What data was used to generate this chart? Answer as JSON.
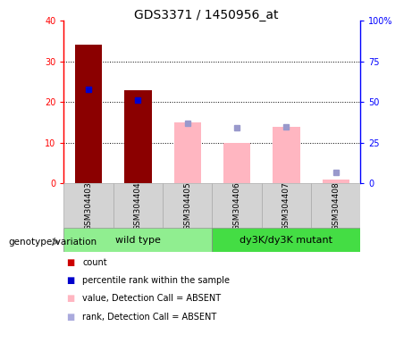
{
  "title": "GDS3371 / 1450956_at",
  "samples": [
    "GSM304403",
    "GSM304404",
    "GSM304405",
    "GSM304406",
    "GSM304407",
    "GSM304408"
  ],
  "count_values": [
    34,
    23,
    null,
    null,
    null,
    null
  ],
  "rank_values_pct": [
    58,
    51,
    null,
    null,
    null,
    null
  ],
  "count_absent": [
    null,
    null,
    15,
    10,
    14,
    1
  ],
  "rank_absent_pct": [
    null,
    null,
    37,
    34,
    35,
    7
  ],
  "ylim_left": [
    0,
    40
  ],
  "ylim_right": [
    0,
    100
  ],
  "yticks_left": [
    0,
    10,
    20,
    30,
    40
  ],
  "yticks_right": [
    0,
    25,
    50,
    75,
    100
  ],
  "yticklabels_left": [
    "0",
    "10",
    "20",
    "30",
    "40"
  ],
  "yticklabels_right": [
    "0",
    "25",
    "50",
    "75",
    "100%"
  ],
  "group_labels": [
    "wild type",
    "dy3K/dy3K mutant"
  ],
  "group_ranges": [
    [
      0,
      3
    ],
    [
      3,
      6
    ]
  ],
  "bar_color_present": "#8B0000",
  "bar_color_absent": "#FFB6C1",
  "rank_color_present": "#0000CC",
  "rank_color_absent": "#9999CC",
  "sample_box_color": "#D3D3D3",
  "genotype_label": "genotype/variation",
  "legend_items": [
    {
      "label": "count",
      "color": "#CC0000"
    },
    {
      "label": "percentile rank within the sample",
      "color": "#0000CC"
    },
    {
      "label": "value, Detection Call = ABSENT",
      "color": "#FFB6C1"
    },
    {
      "label": "rank, Detection Call = ABSENT",
      "color": "#AAAADD"
    }
  ]
}
